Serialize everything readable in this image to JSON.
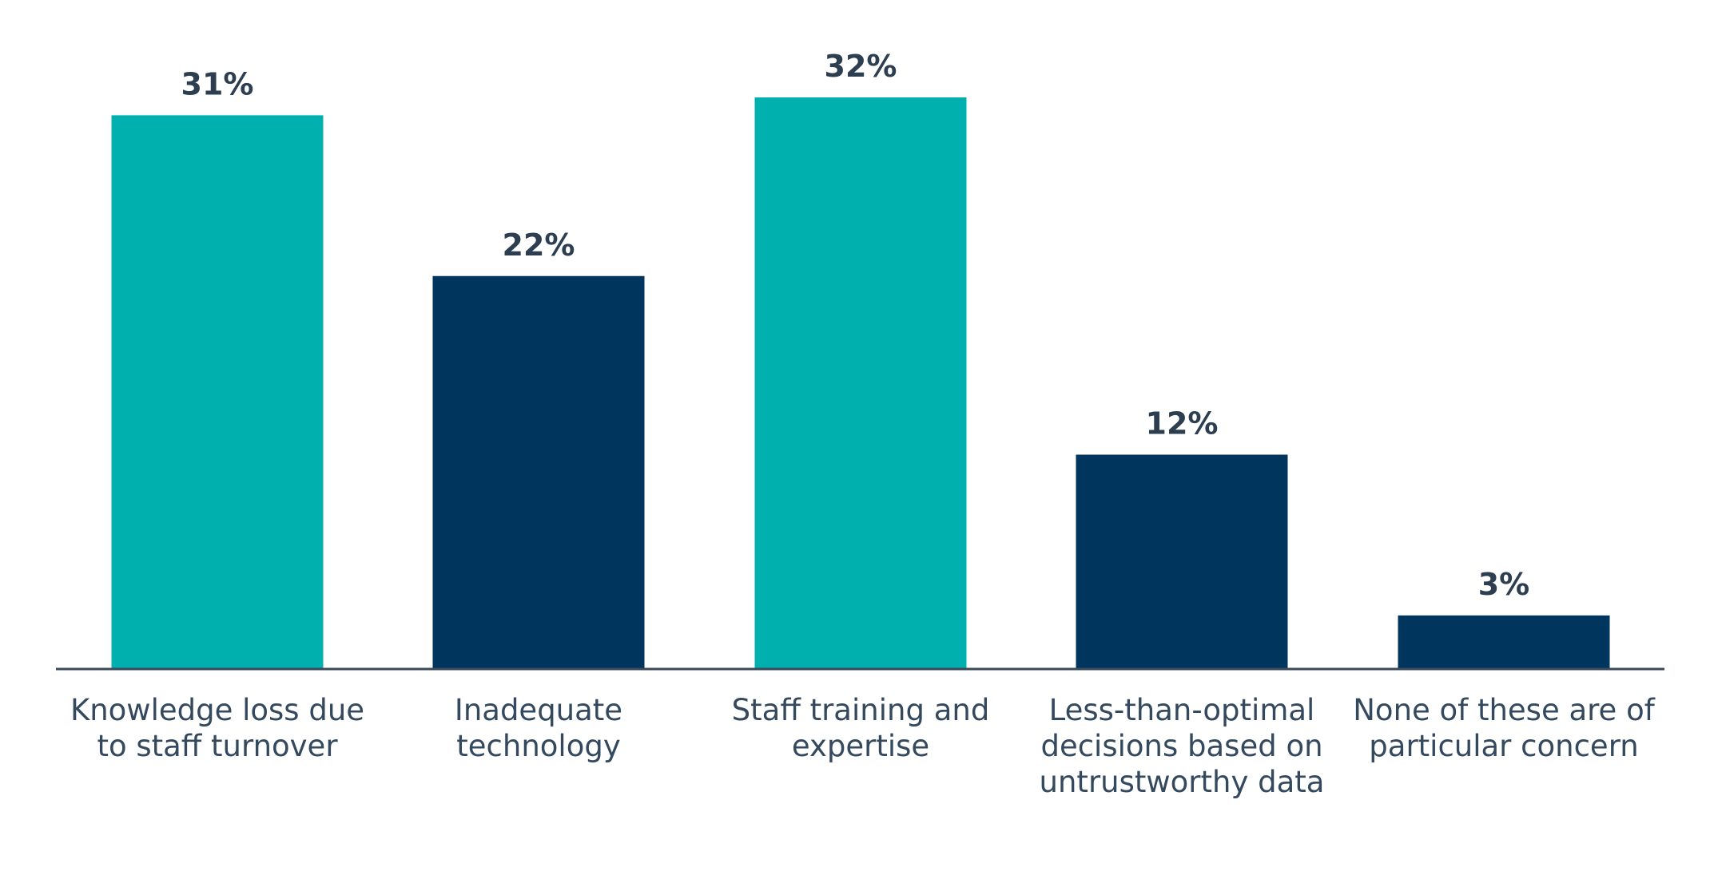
{
  "chart_data": {
    "type": "bar",
    "categories": [
      [
        "Knowledge loss due",
        "to staff turnover"
      ],
      [
        "Inadequate",
        "technology"
      ],
      [
        "Staff training and",
        "expertise"
      ],
      [
        "Less-than-optimal",
        "decisions based on",
        "untrustworthy data"
      ],
      [
        "None of these are of",
        "particular concern"
      ]
    ],
    "values": [
      31,
      22,
      32,
      12,
      3
    ],
    "value_labels": [
      "31%",
      "22%",
      "32%",
      "12%",
      "3%"
    ],
    "bar_colors": [
      "#00b0af",
      "#00355d",
      "#00b0af",
      "#00355d",
      "#00355d"
    ],
    "axis_color": "#3b4a5a",
    "ylim": [
      0,
      32
    ],
    "grid": false,
    "legend": "none",
    "title": "",
    "xlabel": "",
    "ylabel": ""
  }
}
